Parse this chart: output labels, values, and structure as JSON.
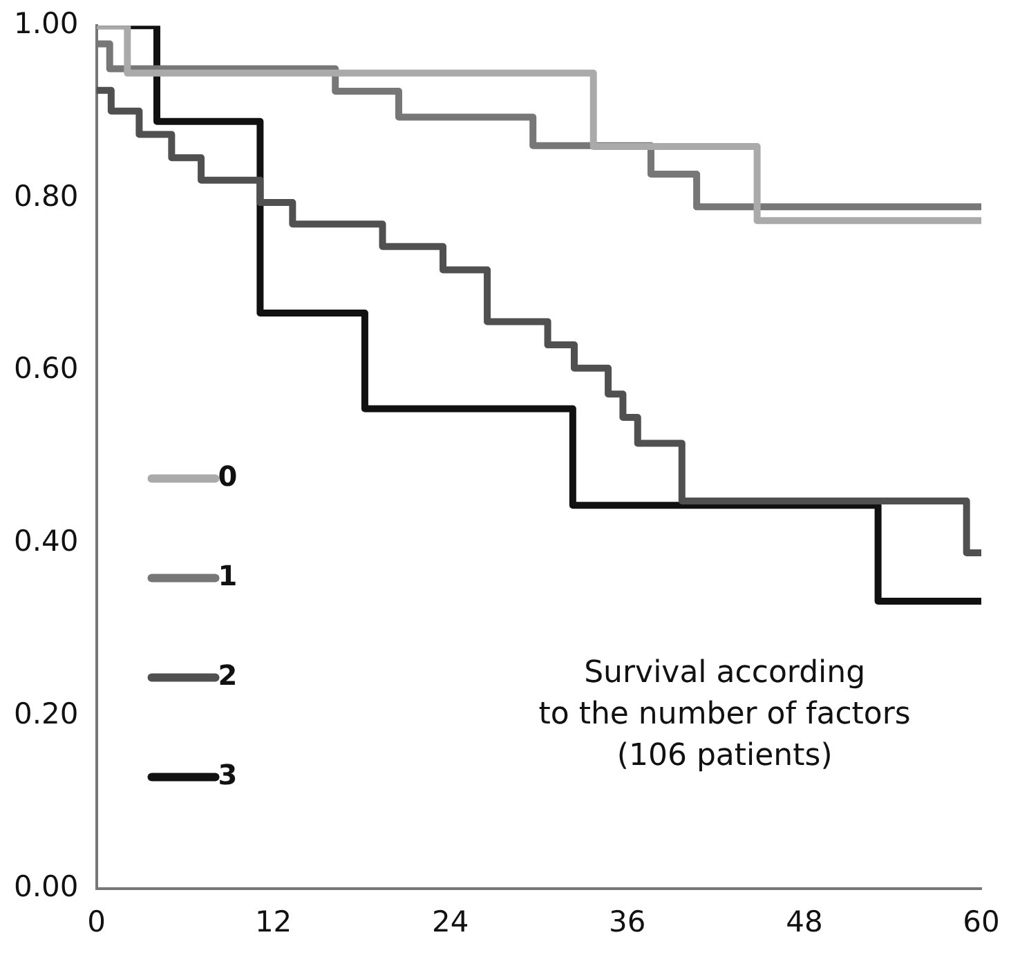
{
  "chart_data": {
    "type": "step",
    "xlim": [
      0,
      60
    ],
    "xticks": [
      0,
      12,
      24,
      36,
      48,
      60
    ],
    "ylim": [
      0,
      1
    ],
    "yticks": [
      {
        "value": 0,
        "label": "0.00"
      },
      {
        "value": 0.2,
        "label": "0.20"
      },
      {
        "value": 0.4,
        "label": "0.40"
      },
      {
        "value": 0.6,
        "label": "0.60"
      },
      {
        "value": 0.8,
        "label": "0.80"
      },
      {
        "value": 1,
        "label": "1.00"
      }
    ],
    "legend": "left",
    "marker": "none",
    "line_style": "solid",
    "annotations": [
      "Survival according\nto the number of factors\n(106 patients)"
    ],
    "series": [
      {
        "name": "0",
        "color": "#aaaaaa",
        "x": [
          0,
          2.1,
          33.7,
          44.8,
          60
        ],
        "values": [
          1,
          0.945,
          0.86,
          0.774,
          0.774
        ]
      },
      {
        "name": "1",
        "color": "#777777",
        "x": [
          0,
          0.9,
          16.2,
          20.5,
          29.6,
          37.6,
          40.7,
          60
        ],
        "values": [
          0.979,
          0.95,
          0.924,
          0.894,
          0.861,
          0.828,
          0.79,
          0.79
        ]
      },
      {
        "name": "2",
        "color": "#505050",
        "x": [
          0,
          1,
          2.9,
          5.1,
          7.1,
          11.1,
          13.3,
          19.4,
          23.5,
          26.5,
          30.6,
          32.4,
          34.7,
          35.7,
          36.7,
          39.7,
          59,
          60
        ],
        "values": [
          0.925,
          0.901,
          0.874,
          0.847,
          0.821,
          0.795,
          0.77,
          0.744,
          0.717,
          0.657,
          0.63,
          0.603,
          0.573,
          0.546,
          0.516,
          0.449,
          0.389,
          0.389
        ]
      },
      {
        "name": "3",
        "color": "#111111",
        "x": [
          0,
          4.1,
          11.1,
          18.2,
          32.3,
          53,
          60
        ],
        "values": [
          1,
          0.889,
          0.667,
          0.556,
          0.444,
          0.333,
          0.333
        ]
      }
    ]
  }
}
